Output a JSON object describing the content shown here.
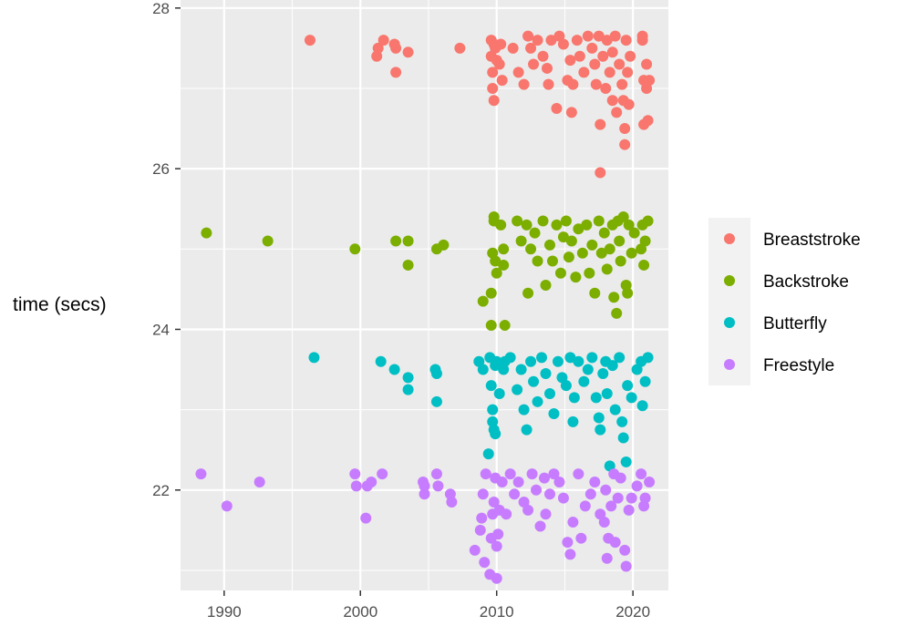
{
  "chart_data": {
    "type": "scatter",
    "title": "",
    "xlabel": "",
    "ylabel": "time (secs)",
    "xlim": [
      1986.8,
      2022.6
    ],
    "ylim": [
      20.75,
      28.1
    ],
    "xticks": [
      1990,
      2000,
      2010,
      2020
    ],
    "yticks": [
      22,
      24,
      26,
      28
    ],
    "grid": true,
    "legend_position": "right",
    "series": [
      {
        "name": "Breaststroke",
        "color": "#F8766D",
        "points": [
          [
            1996.3,
            27.6
          ],
          [
            2001.2,
            27.4
          ],
          [
            2001.3,
            27.5
          ],
          [
            2001.7,
            27.6
          ],
          [
            2002.5,
            27.55
          ],
          [
            2002.6,
            27.5
          ],
          [
            2002.6,
            27.2
          ],
          [
            2003.5,
            27.45
          ],
          [
            2007.3,
            27.5
          ],
          [
            2009.6,
            27.6
          ],
          [
            2009.6,
            27.4
          ],
          [
            2009.7,
            27.2
          ],
          [
            2009.7,
            27.0
          ],
          [
            2009.8,
            26.85
          ],
          [
            2009.9,
            27.5
          ],
          [
            2009.8,
            27.55
          ],
          [
            2010.0,
            27.35
          ],
          [
            2010.2,
            27.3
          ],
          [
            2010.3,
            27.55
          ],
          [
            2010.4,
            27.1
          ],
          [
            2011.2,
            27.5
          ],
          [
            2011.6,
            27.2
          ],
          [
            2012.0,
            27.05
          ],
          [
            2012.3,
            27.65
          ],
          [
            2012.5,
            27.5
          ],
          [
            2012.7,
            27.3
          ],
          [
            2013.0,
            27.6
          ],
          [
            2013.4,
            27.4
          ],
          [
            2013.7,
            27.25
          ],
          [
            2013.8,
            27.05
          ],
          [
            2014.0,
            27.6
          ],
          [
            2014.4,
            26.75
          ],
          [
            2014.6,
            27.65
          ],
          [
            2014.9,
            27.55
          ],
          [
            2015.2,
            27.1
          ],
          [
            2015.4,
            27.35
          ],
          [
            2015.5,
            26.7
          ],
          [
            2015.6,
            27.05
          ],
          [
            2015.9,
            27.6
          ],
          [
            2016.1,
            27.4
          ],
          [
            2016.4,
            27.2
          ],
          [
            2016.7,
            27.65
          ],
          [
            2017.0,
            27.5
          ],
          [
            2017.2,
            27.3
          ],
          [
            2017.3,
            27.05
          ],
          [
            2017.5,
            27.65
          ],
          [
            2017.6,
            26.55
          ],
          [
            2017.6,
            25.95
          ],
          [
            2017.8,
            27.4
          ],
          [
            2018.0,
            27.0
          ],
          [
            2018.1,
            27.6
          ],
          [
            2018.3,
            27.2
          ],
          [
            2018.5,
            26.85
          ],
          [
            2018.5,
            27.45
          ],
          [
            2018.7,
            27.65
          ],
          [
            2018.8,
            26.7
          ],
          [
            2019.0,
            27.3
          ],
          [
            2019.2,
            27.05
          ],
          [
            2019.3,
            26.85
          ],
          [
            2019.4,
            26.5
          ],
          [
            2019.4,
            26.3
          ],
          [
            2019.5,
            27.6
          ],
          [
            2019.6,
            27.2
          ],
          [
            2019.7,
            26.8
          ],
          [
            2019.8,
            27.4
          ],
          [
            2020.7,
            27.6
          ],
          [
            2020.7,
            27.65
          ],
          [
            2020.8,
            27.1
          ],
          [
            2020.8,
            26.55
          ],
          [
            2021.0,
            27.3
          ],
          [
            2021.0,
            27.0
          ],
          [
            2021.1,
            26.6
          ],
          [
            2021.2,
            27.1
          ]
        ]
      },
      {
        "name": "Backstroke",
        "color": "#7CAE00",
        "points": [
          [
            1988.7,
            25.2
          ],
          [
            1993.2,
            25.1
          ],
          [
            1999.6,
            25.0
          ],
          [
            2002.6,
            25.1
          ],
          [
            2003.5,
            25.1
          ],
          [
            2003.5,
            24.8
          ],
          [
            2005.6,
            25.0
          ],
          [
            2006.1,
            25.05
          ],
          [
            2009.0,
            24.35
          ],
          [
            2009.6,
            24.05
          ],
          [
            2009.6,
            24.45
          ],
          [
            2009.7,
            24.95
          ],
          [
            2009.8,
            25.35
          ],
          [
            2009.8,
            25.4
          ],
          [
            2009.9,
            24.85
          ],
          [
            2010.0,
            24.7
          ],
          [
            2010.3,
            25.3
          ],
          [
            2010.5,
            25.0
          ],
          [
            2010.5,
            24.8
          ],
          [
            2010.6,
            24.05
          ],
          [
            2011.5,
            25.35
          ],
          [
            2011.8,
            25.1
          ],
          [
            2012.2,
            25.3
          ],
          [
            2012.3,
            24.45
          ],
          [
            2012.5,
            25.0
          ],
          [
            2012.8,
            25.2
          ],
          [
            2013.0,
            24.85
          ],
          [
            2013.4,
            25.35
          ],
          [
            2013.6,
            24.55
          ],
          [
            2013.9,
            25.05
          ],
          [
            2014.1,
            24.85
          ],
          [
            2014.4,
            25.3
          ],
          [
            2014.7,
            24.7
          ],
          [
            2014.9,
            25.15
          ],
          [
            2015.1,
            25.35
          ],
          [
            2015.3,
            24.9
          ],
          [
            2015.5,
            25.1
          ],
          [
            2015.8,
            24.65
          ],
          [
            2016.0,
            25.25
          ],
          [
            2016.3,
            24.95
          ],
          [
            2016.6,
            25.3
          ],
          [
            2016.8,
            24.7
          ],
          [
            2017.0,
            25.05
          ],
          [
            2017.2,
            24.45
          ],
          [
            2017.5,
            25.35
          ],
          [
            2017.7,
            24.95
          ],
          [
            2017.9,
            25.2
          ],
          [
            2018.1,
            24.75
          ],
          [
            2018.3,
            25.0
          ],
          [
            2018.5,
            25.3
          ],
          [
            2018.6,
            24.4
          ],
          [
            2018.8,
            24.2
          ],
          [
            2018.9,
            25.35
          ],
          [
            2019.0,
            25.1
          ],
          [
            2019.1,
            24.85
          ],
          [
            2019.3,
            25.4
          ],
          [
            2019.5,
            24.55
          ],
          [
            2019.6,
            24.45
          ],
          [
            2019.7,
            25.3
          ],
          [
            2019.9,
            24.95
          ],
          [
            2020.1,
            25.2
          ],
          [
            2020.6,
            25.0
          ],
          [
            2020.7,
            25.3
          ],
          [
            2020.8,
            24.8
          ],
          [
            2020.9,
            25.1
          ],
          [
            2021.1,
            25.35
          ]
        ]
      },
      {
        "name": "Butterfly",
        "color": "#00BFC4",
        "points": [
          [
            1996.6,
            23.65
          ],
          [
            2001.5,
            23.6
          ],
          [
            2002.5,
            23.5
          ],
          [
            2003.5,
            23.4
          ],
          [
            2003.5,
            23.25
          ],
          [
            2005.5,
            23.5
          ],
          [
            2005.6,
            23.45
          ],
          [
            2005.6,
            23.1
          ],
          [
            2008.7,
            23.6
          ],
          [
            2009.0,
            23.5
          ],
          [
            2009.4,
            22.45
          ],
          [
            2009.5,
            23.65
          ],
          [
            2009.6,
            23.3
          ],
          [
            2009.7,
            23.0
          ],
          [
            2009.7,
            22.85
          ],
          [
            2009.8,
            22.75
          ],
          [
            2009.9,
            22.7
          ],
          [
            2009.9,
            23.55
          ],
          [
            2010.0,
            23.6
          ],
          [
            2010.2,
            23.2
          ],
          [
            2010.5,
            23.5
          ],
          [
            2010.6,
            23.6
          ],
          [
            2011.0,
            23.65
          ],
          [
            2011.5,
            23.25
          ],
          [
            2011.8,
            23.5
          ],
          [
            2012.0,
            23.0
          ],
          [
            2012.2,
            22.75
          ],
          [
            2012.5,
            23.6
          ],
          [
            2012.7,
            23.35
          ],
          [
            2013.0,
            23.1
          ],
          [
            2013.3,
            23.65
          ],
          [
            2013.6,
            23.45
          ],
          [
            2013.9,
            23.2
          ],
          [
            2014.2,
            22.95
          ],
          [
            2014.5,
            23.6
          ],
          [
            2014.8,
            23.4
          ],
          [
            2015.1,
            23.3
          ],
          [
            2015.4,
            23.65
          ],
          [
            2015.6,
            22.85
          ],
          [
            2015.7,
            23.15
          ],
          [
            2016.0,
            23.6
          ],
          [
            2016.4,
            23.35
          ],
          [
            2016.7,
            23.5
          ],
          [
            2017.0,
            23.65
          ],
          [
            2017.3,
            23.15
          ],
          [
            2017.5,
            22.9
          ],
          [
            2017.6,
            22.75
          ],
          [
            2017.8,
            23.45
          ],
          [
            2018.0,
            23.6
          ],
          [
            2018.1,
            23.2
          ],
          [
            2018.3,
            22.3
          ],
          [
            2018.5,
            23.55
          ],
          [
            2018.7,
            23.0
          ],
          [
            2019.0,
            23.65
          ],
          [
            2019.2,
            22.85
          ],
          [
            2019.3,
            22.65
          ],
          [
            2019.5,
            22.35
          ],
          [
            2019.6,
            23.3
          ],
          [
            2019.9,
            23.15
          ],
          [
            2020.3,
            23.5
          ],
          [
            2020.6,
            23.6
          ],
          [
            2020.7,
            23.05
          ],
          [
            2020.9,
            23.35
          ],
          [
            2021.1,
            23.65
          ]
        ]
      },
      {
        "name": "Freestyle",
        "color": "#C77CFF",
        "points": [
          [
            1988.3,
            22.2
          ],
          [
            1990.2,
            21.8
          ],
          [
            1992.6,
            22.1
          ],
          [
            1999.6,
            22.2
          ],
          [
            1999.7,
            22.05
          ],
          [
            2000.4,
            21.65
          ],
          [
            2000.5,
            22.05
          ],
          [
            2000.8,
            22.1
          ],
          [
            2001.6,
            22.2
          ],
          [
            2004.6,
            22.1
          ],
          [
            2004.7,
            21.95
          ],
          [
            2004.7,
            22.05
          ],
          [
            2005.6,
            22.2
          ],
          [
            2005.7,
            22.05
          ],
          [
            2006.6,
            21.95
          ],
          [
            2006.7,
            21.85
          ],
          [
            2008.4,
            21.25
          ],
          [
            2008.8,
            21.5
          ],
          [
            2008.9,
            21.65
          ],
          [
            2009.0,
            21.95
          ],
          [
            2009.1,
            21.1
          ],
          [
            2009.2,
            22.2
          ],
          [
            2009.5,
            20.95
          ],
          [
            2009.6,
            21.4
          ],
          [
            2009.7,
            21.7
          ],
          [
            2009.8,
            21.85
          ],
          [
            2009.9,
            22.15
          ],
          [
            2010.0,
            21.3
          ],
          [
            2010.0,
            20.9
          ],
          [
            2010.1,
            21.45
          ],
          [
            2010.2,
            21.75
          ],
          [
            2010.4,
            22.1
          ],
          [
            2010.7,
            21.7
          ],
          [
            2011.0,
            22.2
          ],
          [
            2011.3,
            21.95
          ],
          [
            2011.6,
            22.1
          ],
          [
            2012.0,
            21.85
          ],
          [
            2012.3,
            21.75
          ],
          [
            2012.6,
            22.2
          ],
          [
            2012.9,
            22.0
          ],
          [
            2013.2,
            21.55
          ],
          [
            2013.5,
            22.15
          ],
          [
            2013.6,
            21.7
          ],
          [
            2013.9,
            21.95
          ],
          [
            2014.2,
            22.2
          ],
          [
            2014.6,
            22.1
          ],
          [
            2014.9,
            21.9
          ],
          [
            2015.2,
            21.35
          ],
          [
            2015.4,
            21.2
          ],
          [
            2015.6,
            21.6
          ],
          [
            2016.0,
            22.2
          ],
          [
            2016.2,
            21.4
          ],
          [
            2016.5,
            21.8
          ],
          [
            2016.9,
            21.95
          ],
          [
            2017.2,
            22.1
          ],
          [
            2017.6,
            21.7
          ],
          [
            2017.9,
            21.6
          ],
          [
            2018.0,
            22.0
          ],
          [
            2018.1,
            21.15
          ],
          [
            2018.2,
            21.4
          ],
          [
            2018.4,
            21.8
          ],
          [
            2018.6,
            22.2
          ],
          [
            2018.7,
            21.35
          ],
          [
            2018.9,
            21.9
          ],
          [
            2019.1,
            22.15
          ],
          [
            2019.4,
            21.25
          ],
          [
            2019.5,
            21.05
          ],
          [
            2019.7,
            21.75
          ],
          [
            2019.9,
            21.9
          ],
          [
            2020.3,
            22.05
          ],
          [
            2020.6,
            22.2
          ],
          [
            2020.8,
            21.8
          ],
          [
            2020.9,
            21.9
          ],
          [
            2021.2,
            22.1
          ]
        ]
      }
    ]
  }
}
